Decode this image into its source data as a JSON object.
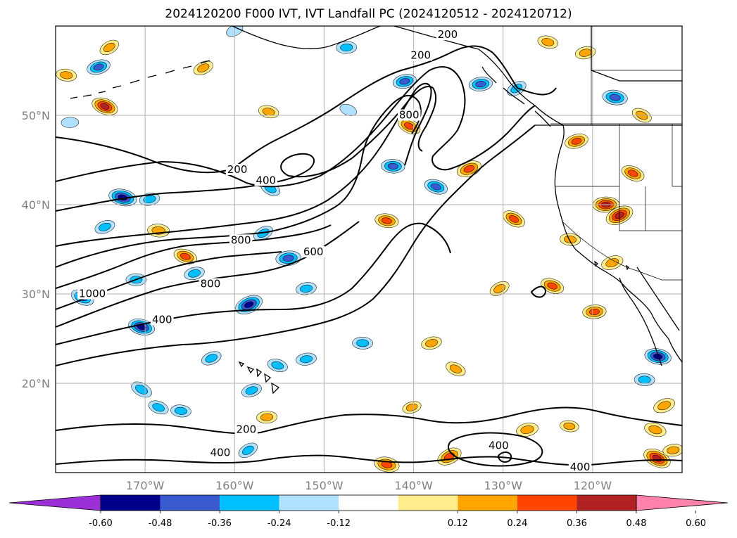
{
  "title": "2024120200 F000 IVT, IVT Landfall PC (2024120512 - 2024120712)",
  "map": {
    "lon_range": [
      -180,
      -110
    ],
    "lat_range": [
      10,
      60
    ],
    "lat_ticks": [
      {
        "value": 20,
        "label": "20°N"
      },
      {
        "value": 30,
        "label": "30°N"
      },
      {
        "value": 40,
        "label": "40°N"
      },
      {
        "value": 50,
        "label": "50°N"
      }
    ],
    "lon_ticks": [
      {
        "value": -170,
        "label": "170°W"
      },
      {
        "value": -160,
        "label": "160°W"
      },
      {
        "value": -150,
        "label": "150°W"
      },
      {
        "value": -140,
        "label": "140°W"
      },
      {
        "value": -130,
        "label": "130°W"
      },
      {
        "value": -120,
        "label": "120°W"
      }
    ],
    "grid": true,
    "contour_labels": [
      {
        "text": "200",
        "lon": -139.2,
        "lat": 56.5
      },
      {
        "text": "200",
        "lon": -136.2,
        "lat": 58.8
      },
      {
        "text": "800",
        "lon": -140.5,
        "lat": 49.8
      },
      {
        "text": "200",
        "lon": -159.7,
        "lat": 43.7
      },
      {
        "text": "400",
        "lon": -156.5,
        "lat": 42.5
      },
      {
        "text": "800",
        "lon": -159.3,
        "lat": 35.8
      },
      {
        "text": "600",
        "lon": -151.2,
        "lat": 34.5
      },
      {
        "text": "800",
        "lon": -162.7,
        "lat": 30.9
      },
      {
        "text": "1000",
        "lon": -175.9,
        "lat": 29.8
      },
      {
        "text": "400",
        "lon": -168.1,
        "lat": 26.9
      },
      {
        "text": "200",
        "lon": -158.7,
        "lat": 14.6
      },
      {
        "text": "400",
        "lon": -161.6,
        "lat": 12.0
      },
      {
        "text": "400",
        "lon": -130.5,
        "lat": 12.8
      },
      {
        "text": "400",
        "lon": -121.4,
        "lat": 10.4
      }
    ]
  },
  "colorbar": {
    "extend": "both",
    "ticks": [
      "-0.60",
      "-0.48",
      "-0.36",
      "-0.24",
      "-0.12",
      "0.12",
      "0.24",
      "0.36",
      "0.48",
      "0.60"
    ],
    "colors": [
      "#9b30d9",
      "#00008b",
      "#3a5bd0",
      "#00bfff",
      "#b0e2ff",
      "#ffffff",
      "#ffec8b",
      "#ffa500",
      "#ff4500",
      "#b22222",
      "#ff82ab"
    ]
  },
  "chart_data": {
    "type": "heatmap",
    "title": "2024120200 F000 IVT, IVT Landfall PC (2024120512 - 2024120712)",
    "contour_levels": [
      200,
      400,
      600,
      800,
      1000
    ],
    "fill_levels": [
      -0.6,
      -0.48,
      -0.36,
      -0.24,
      -0.12,
      0.12,
      0.24,
      0.36,
      0.48,
      0.6
    ],
    "xlim": [
      -180,
      -110
    ],
    "ylim": [
      10,
      60
    ],
    "patches": [
      {
        "lon": -174,
        "lat": 57.6,
        "v": 0.3
      },
      {
        "lon": -178.8,
        "lat": 54.5,
        "v": 0.3
      },
      {
        "lon": -175.2,
        "lat": 55.4,
        "v": -0.4
      },
      {
        "lon": -174.5,
        "lat": 51.0,
        "v": 0.5
      },
      {
        "lon": -178.4,
        "lat": 49.2,
        "v": -0.2
      },
      {
        "lon": -163.5,
        "lat": 55.3,
        "v": 0.3
      },
      {
        "lon": -156.2,
        "lat": 50.4,
        "v": 0.3
      },
      {
        "lon": -141.0,
        "lat": 53.8,
        "v": -0.4
      },
      {
        "lon": -140.5,
        "lat": 48.8,
        "v": 0.4
      },
      {
        "lon": -142.3,
        "lat": 44.3,
        "v": -0.4
      },
      {
        "lon": -133.8,
        "lat": 44.0,
        "v": 0.45
      },
      {
        "lon": -137.5,
        "lat": 42.0,
        "v": -0.4
      },
      {
        "lon": -132.5,
        "lat": 53.5,
        "v": -0.4
      },
      {
        "lon": -128.5,
        "lat": 53.0,
        "v": -0.3
      },
      {
        "lon": -117.5,
        "lat": 52.0,
        "v": -0.45
      },
      {
        "lon": -121.8,
        "lat": 47.1,
        "v": 0.4
      },
      {
        "lon": -115.5,
        "lat": 43.5,
        "v": 0.4
      },
      {
        "lon": -118.5,
        "lat": 40.0,
        "v": 0.5
      },
      {
        "lon": -117.0,
        "lat": 38.8,
        "v": 0.55
      },
      {
        "lon": -172.5,
        "lat": 40.8,
        "v": -0.55
      },
      {
        "lon": -169.5,
        "lat": 40.6,
        "v": -0.3
      },
      {
        "lon": -156.0,
        "lat": 41.8,
        "v": -0.3
      },
      {
        "lon": -168.5,
        "lat": 37.1,
        "v": 0.35
      },
      {
        "lon": -174.5,
        "lat": 37.5,
        "v": -0.3
      },
      {
        "lon": -165.5,
        "lat": 34.2,
        "v": 0.4
      },
      {
        "lon": -154.0,
        "lat": 34.0,
        "v": -0.45
      },
      {
        "lon": -156.8,
        "lat": 36.8,
        "v": -0.3
      },
      {
        "lon": -143.0,
        "lat": 38.2,
        "v": 0.4
      },
      {
        "lon": -164.5,
        "lat": 32.3,
        "v": -0.3
      },
      {
        "lon": -177.0,
        "lat": 29.6,
        "v": -0.4
      },
      {
        "lon": -171.0,
        "lat": 31.6,
        "v": -0.3
      },
      {
        "lon": -158.4,
        "lat": 28.8,
        "v": -0.55
      },
      {
        "lon": -170.4,
        "lat": 26.3,
        "v": -0.5
      },
      {
        "lon": -152.0,
        "lat": 30.6,
        "v": -0.3
      },
      {
        "lon": -128.8,
        "lat": 38.4,
        "v": 0.4
      },
      {
        "lon": -122.5,
        "lat": 36.1,
        "v": 0.3
      },
      {
        "lon": -117.8,
        "lat": 33.5,
        "v": 0.35
      },
      {
        "lon": -124.5,
        "lat": 30.9,
        "v": 0.4
      },
      {
        "lon": -119.8,
        "lat": 28.0,
        "v": 0.4
      },
      {
        "lon": -130.4,
        "lat": 30.6,
        "v": 0.3
      },
      {
        "lon": -112.7,
        "lat": 23.0,
        "v": -0.5
      },
      {
        "lon": -138.0,
        "lat": 24.5,
        "v": 0.3
      },
      {
        "lon": -135.3,
        "lat": 21.6,
        "v": 0.3
      },
      {
        "lon": -145.7,
        "lat": 24.5,
        "v": -0.3
      },
      {
        "lon": -162.6,
        "lat": 22.8,
        "v": -0.3
      },
      {
        "lon": -155.2,
        "lat": 22.0,
        "v": -0.3
      },
      {
        "lon": -152.0,
        "lat": 22.7,
        "v": -0.3
      },
      {
        "lon": -170.4,
        "lat": 19.3,
        "v": -0.35
      },
      {
        "lon": -166.0,
        "lat": 16.9,
        "v": -0.3
      },
      {
        "lon": -158.1,
        "lat": 19.2,
        "v": -0.3
      },
      {
        "lon": -168.5,
        "lat": 17.3,
        "v": -0.3
      },
      {
        "lon": -156.4,
        "lat": 16.2,
        "v": 0.3
      },
      {
        "lon": -136.0,
        "lat": 11.8,
        "v": 0.45
      },
      {
        "lon": -143.0,
        "lat": 10.9,
        "v": 0.45
      },
      {
        "lon": -127.3,
        "lat": 14.8,
        "v": 0.35
      },
      {
        "lon": -112.8,
        "lat": 11.6,
        "v": 0.55
      },
      {
        "lon": -114.2,
        "lat": 20.4,
        "v": -0.3
      },
      {
        "lon": -112.0,
        "lat": 17.5,
        "v": 0.35
      },
      {
        "lon": -113.0,
        "lat": 14.8,
        "v": 0.35
      },
      {
        "lon": -111.0,
        "lat": 12.5,
        "v": 0.3
      },
      {
        "lon": -158.5,
        "lat": 12.5,
        "v": -0.3
      },
      {
        "lon": -122.6,
        "lat": 15.2,
        "v": 0.25
      },
      {
        "lon": -140.2,
        "lat": 17.3,
        "v": 0.25
      },
      {
        "lon": -147.3,
        "lat": 50.6,
        "v": -0.2
      },
      {
        "lon": -147.5,
        "lat": 57.6,
        "v": -0.3
      },
      {
        "lon": -160.0,
        "lat": 59.5,
        "v": -0.2
      },
      {
        "lon": -125.0,
        "lat": 58.2,
        "v": 0.3
      },
      {
        "lon": -120.8,
        "lat": 57.0,
        "v": 0.3
      },
      {
        "lon": -114.5,
        "lat": 50.0,
        "v": 0.3
      }
    ]
  }
}
